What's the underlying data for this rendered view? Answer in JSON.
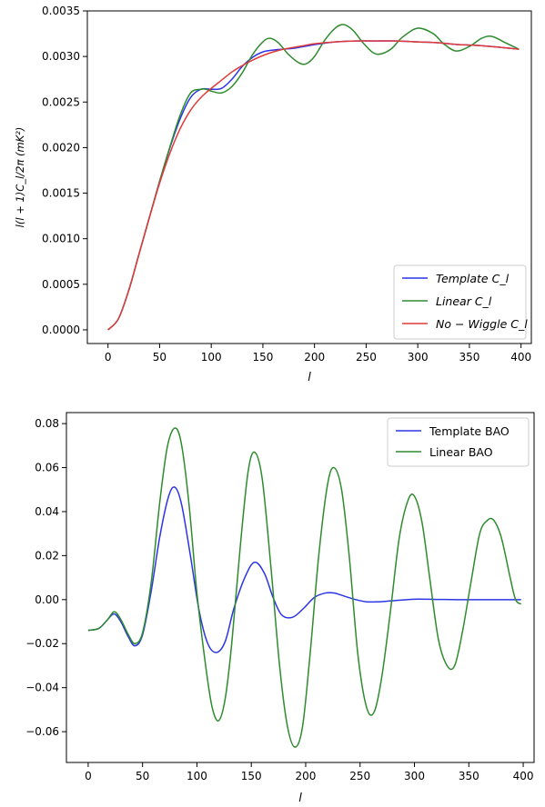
{
  "chart_data": [
    {
      "type": "line",
      "xlabel": "l",
      "ylabel": "l(l + 1)C_l/2π   (mK²)",
      "xlim": [
        -20,
        410
      ],
      "ylim": [
        -0.00015,
        0.0035
      ],
      "xticks": [
        0,
        50,
        100,
        150,
        200,
        250,
        300,
        350,
        400
      ],
      "xtick_labels": [
        "0",
        "50",
        "100",
        "150",
        "200",
        "250",
        "300",
        "350",
        "400"
      ],
      "yticks": [
        0.0,
        0.0005,
        0.001,
        0.0015,
        0.002,
        0.0025,
        0.003,
        0.0035
      ],
      "ytick_labels": [
        "0.0000",
        "0.0005",
        "0.0010",
        "0.0015",
        "0.0020",
        "0.0025",
        "0.0030",
        "0.0035"
      ],
      "legend_position": "lower-right",
      "grid": false,
      "series": [
        {
          "name": "Template C_l",
          "color": "#2b35e6",
          "x": [
            0,
            10,
            20,
            30,
            40,
            50,
            60,
            70,
            80,
            90,
            100,
            110,
            120,
            130,
            140,
            150,
            160,
            170,
            180,
            190,
            200,
            220,
            240,
            260,
            280,
            300,
            320,
            340,
            360,
            380,
            398
          ],
          "y": [
            0.0,
            0.00012,
            0.00043,
            0.00083,
            0.00123,
            0.00163,
            0.002,
            0.00232,
            0.00255,
            0.00264,
            0.00264,
            0.00265,
            0.00275,
            0.00289,
            0.00299,
            0.00305,
            0.00307,
            0.00308,
            0.00309,
            0.00311,
            0.00313,
            0.00316,
            0.00317,
            0.00317,
            0.00317,
            0.00316,
            0.00315,
            0.00313,
            0.00312,
            0.0031,
            0.00308
          ]
        },
        {
          "name": "Linear C_l",
          "color": "#2e8b2e",
          "x": [
            0,
            10,
            20,
            30,
            40,
            50,
            60,
            70,
            80,
            90,
            95,
            100,
            110,
            120,
            130,
            140,
            150,
            157,
            165,
            175,
            185,
            192,
            200,
            210,
            220,
            228,
            237,
            247,
            257,
            265,
            275,
            285,
            300,
            315,
            325,
            337,
            350,
            362,
            372,
            385,
            398
          ],
          "y": [
            0.0,
            0.00012,
            0.00043,
            0.00083,
            0.00123,
            0.00163,
            0.00201,
            0.00236,
            0.0026,
            0.00264,
            0.00264,
            0.00262,
            0.0026,
            0.00267,
            0.00282,
            0.00302,
            0.00316,
            0.0032,
            0.00315,
            0.00302,
            0.00293,
            0.00292,
            0.003,
            0.00318,
            0.00331,
            0.00335,
            0.00329,
            0.00315,
            0.00304,
            0.00303,
            0.00309,
            0.00321,
            0.00331,
            0.00325,
            0.00314,
            0.00306,
            0.00311,
            0.0032,
            0.00322,
            0.00315,
            0.00308
          ]
        },
        {
          "name": "No − Wiggle C_l",
          "color": "#e03a3a",
          "x": [
            0,
            10,
            20,
            30,
            40,
            50,
            60,
            70,
            80,
            90,
            100,
            110,
            120,
            130,
            140,
            150,
            160,
            170,
            180,
            190,
            200,
            220,
            240,
            260,
            280,
            300,
            320,
            340,
            360,
            380,
            398
          ],
          "y": [
            0.0,
            0.00012,
            0.00043,
            0.00083,
            0.00123,
            0.00161,
            0.00194,
            0.00221,
            0.00241,
            0.00255,
            0.00265,
            0.00274,
            0.00283,
            0.0029,
            0.00296,
            0.00301,
            0.00305,
            0.00308,
            0.0031,
            0.00312,
            0.00314,
            0.00316,
            0.00317,
            0.00317,
            0.00317,
            0.00316,
            0.00315,
            0.00313,
            0.00312,
            0.0031,
            0.00308
          ]
        }
      ]
    },
    {
      "type": "line",
      "xlabel": "l",
      "ylabel": "",
      "xlim": [
        -20,
        410
      ],
      "ylim": [
        -0.074,
        0.085
      ],
      "xticks": [
        0,
        50,
        100,
        150,
        200,
        250,
        300,
        350,
        400
      ],
      "xtick_labels": [
        "0",
        "50",
        "100",
        "150",
        "200",
        "250",
        "300",
        "350",
        "400"
      ],
      "yticks": [
        -0.06,
        -0.04,
        -0.02,
        0.0,
        0.02,
        0.04,
        0.06,
        0.08
      ],
      "ytick_labels": [
        "−0.06",
        "−0.04",
        "−0.02",
        "0.00",
        "0.02",
        "0.04",
        "0.06",
        "0.08"
      ],
      "legend_position": "top-right",
      "grid": false,
      "series": [
        {
          "name": "Template BAO",
          "color": "#2b35e6",
          "x": [
            0,
            10,
            18,
            24,
            30,
            37,
            43,
            50,
            58,
            66,
            74,
            80,
            86,
            94,
            102,
            110,
            118,
            126,
            134,
            144,
            153,
            162,
            170,
            178,
            188,
            198,
            208,
            218,
            226,
            236,
            246,
            256,
            266,
            280,
            300,
            320,
            340,
            360,
            380,
            398
          ],
          "y": [
            -0.014,
            -0.013,
            -0.009,
            -0.0065,
            -0.01,
            -0.017,
            -0.021,
            -0.016,
            0.004,
            0.029,
            0.047,
            0.051,
            0.043,
            0.02,
            -0.005,
            -0.02,
            -0.024,
            -0.019,
            -0.004,
            0.01,
            0.017,
            0.012,
            0.001,
            -0.007,
            -0.008,
            -0.004,
            0.001,
            0.003,
            0.003,
            0.0015,
            0.0,
            -0.001,
            -0.001,
            -0.0005,
            0.0002,
            0.0001,
            0.0,
            0.0,
            0.0,
            0.0
          ]
        },
        {
          "name": "Linear BAO",
          "color": "#2e8b2e",
          "x": [
            0,
            10,
            18,
            24,
            30,
            37,
            43,
            50,
            58,
            66,
            73,
            80,
            86,
            93,
            100,
            108,
            114,
            120,
            126,
            132,
            140,
            147,
            153,
            160,
            168,
            176,
            183,
            190,
            197,
            204,
            212,
            220,
            226,
            233,
            240,
            248,
            256,
            263,
            270,
            278,
            286,
            294,
            300,
            307,
            314,
            322,
            330,
            337,
            344,
            352,
            360,
            367,
            373,
            380,
            388,
            393,
            398
          ],
          "y": [
            -0.014,
            -0.013,
            -0.009,
            -0.0055,
            -0.009,
            -0.016,
            -0.02,
            -0.015,
            0.008,
            0.045,
            0.07,
            0.078,
            0.07,
            0.042,
            0.003,
            -0.03,
            -0.049,
            -0.055,
            -0.045,
            -0.02,
            0.025,
            0.058,
            0.067,
            0.055,
            0.015,
            -0.03,
            -0.057,
            -0.067,
            -0.058,
            -0.025,
            0.02,
            0.052,
            0.06,
            0.05,
            0.02,
            -0.025,
            -0.049,
            -0.051,
            -0.035,
            -0.005,
            0.028,
            0.045,
            0.047,
            0.035,
            0.01,
            -0.018,
            -0.03,
            -0.03,
            -0.015,
            0.008,
            0.03,
            0.036,
            0.036,
            0.028,
            0.01,
            0.0,
            -0.002
          ]
        }
      ]
    }
  ]
}
